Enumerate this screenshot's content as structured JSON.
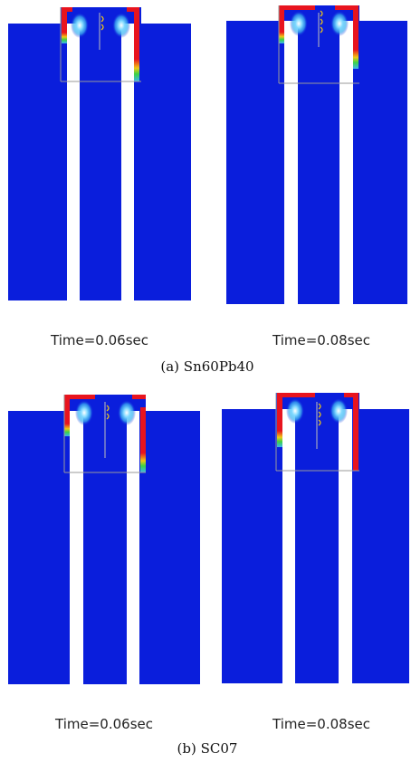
{
  "figure": {
    "panels": [
      {
        "caption": "(a)  Sn60Pb40",
        "frames": [
          {
            "time_label": "Time=0.06sec"
          },
          {
            "time_label": "Time=0.08sec"
          }
        ]
      },
      {
        "caption": "(b)  SC07",
        "frames": [
          {
            "time_label": "Time=0.06sec"
          },
          {
            "time_label": "Time=0.08sec"
          }
        ]
      }
    ],
    "colors": {
      "background_field": "#0a1edc",
      "channel": "#ffffff",
      "hot": "#e8141e",
      "warm": "#f0c814",
      "mid": "#3cd246",
      "cool": "#3cb4f0",
      "outline": "#9a9a9a"
    }
  }
}
